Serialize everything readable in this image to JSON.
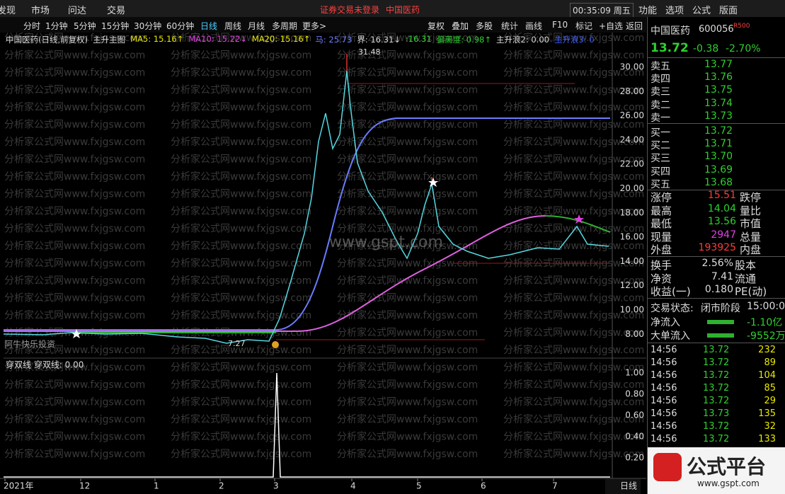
{
  "menu": [
    "发现",
    "市场",
    "问达",
    "交易"
  ],
  "status": "证券交易未登录",
  "stock_tab": "中国医药",
  "clock": "00:35:09 周五",
  "menu_right": [
    "功能",
    "选项",
    "公式",
    "版面"
  ],
  "periods": [
    "分时",
    "1分钟",
    "5分钟",
    "15分钟",
    "30分钟",
    "60分钟",
    "日线",
    "周线",
    "月线",
    "多周期",
    "更多>"
  ],
  "active_period": 6,
  "tools": [
    "复权",
    "叠加",
    "多股",
    "统计",
    "画线",
    "F10",
    "标记",
    "+自选",
    "返回"
  ],
  "info": [
    {
      "text": "中国医药(日线,前复权)",
      "color": "#d8d8d8"
    },
    {
      "text": "主升主图",
      "color": "#d8d8d8"
    },
    {
      "text": "MA5: 15.16↑",
      "color": "#e8e800"
    },
    {
      "text": "MA10: 15.22↓",
      "color": "#e040e0"
    },
    {
      "text": "MA20: 15.16↑",
      "color": "#e8e800"
    },
    {
      "text": "马: 25.73",
      "color": "#6a7cff"
    },
    {
      "text": "界: 16.31↓",
      "color": "#d8d8d8"
    },
    {
      "text": ":16.31",
      "color": "#2fd02f"
    },
    {
      "text": "偏离度: 0.98↑",
      "color": "#2fd02f"
    },
    {
      "text": "主升浪2: 0.00",
      "color": "#d8d8d8"
    },
    {
      "text": "主升浪3: 0",
      "color": "#3a5aff"
    }
  ],
  "price_axis": [
    "30.00",
    "28.00",
    "26.00",
    "24.00",
    "22.00",
    "20.00",
    "18.00",
    "16.00",
    "14.00",
    "12.00",
    "10.00",
    "8.00"
  ],
  "annotations": {
    "high": "31.48",
    "low": "7.27",
    "author": "阿牛快乐投资",
    "center": "www.gspt.com"
  },
  "watermark": "分析家公式网www.fxjgsw.com",
  "indicator": {
    "title": "穿双线 穿双线: 0.00",
    "axis": [
      "1.00",
      "0.80",
      "0.60",
      "0.40",
      "0.20"
    ]
  },
  "dates": [
    "2021年",
    "12",
    "1",
    "2",
    "3",
    "4",
    "5",
    "6",
    "7"
  ],
  "period_label": "日线",
  "quote": {
    "name": "中国医药",
    "code": "600056",
    "badge": "R500",
    "price": "13.72",
    "change": "-0.38",
    "pct": "-2.70%",
    "book": [
      [
        "卖五",
        "13.77"
      ],
      [
        "卖四",
        "13.76"
      ],
      [
        "卖三",
        "13.75"
      ],
      [
        "卖二",
        "13.74"
      ],
      [
        "卖一",
        "13.73"
      ],
      [
        "买一",
        "13.72"
      ],
      [
        "买二",
        "13.71"
      ],
      [
        "买三",
        "13.70"
      ],
      [
        "买四",
        "13.69"
      ],
      [
        "买五",
        "13.68"
      ]
    ],
    "stats": [
      [
        "涨停",
        "15.51",
        "跌停"
      ],
      [
        "最高",
        "14.04",
        "量比"
      ],
      [
        "最低",
        "13.56",
        "市值"
      ],
      [
        "现量",
        "2947",
        "总量"
      ],
      [
        "外盘",
        "193925",
        "内盘"
      ]
    ],
    "stat_colors": [
      "#ff3b3b",
      "#2fd02f",
      "#2fd02f",
      "#e040e0",
      "#ff3b3b"
    ],
    "stats2": [
      [
        "换手",
        "2.56%",
        "股本"
      ],
      [
        "净资",
        "7.41",
        "流通"
      ],
      [
        "收益(一)",
        "0.180",
        "PE(动)"
      ]
    ],
    "status": [
      "交易状态:",
      "闭市阶段",
      "15:00:0"
    ],
    "flows": [
      [
        "净流入",
        "-1.10亿"
      ],
      [
        "大单流入",
        "-9552万"
      ]
    ],
    "trades": [
      [
        "14:56",
        "13.72",
        "232"
      ],
      [
        "14:56",
        "13.72",
        "89"
      ],
      [
        "14:56",
        "13.72",
        "104"
      ],
      [
        "14:56",
        "13.72",
        "85"
      ],
      [
        "14:56",
        "13.72",
        "29"
      ],
      [
        "14:56",
        "13.73",
        "135"
      ],
      [
        "14:56",
        "13.72",
        "32"
      ],
      [
        "14:56",
        "13.72",
        "133"
      ]
    ]
  },
  "logo": {
    "text": "公式平台",
    "url": "www.gspt.com"
  }
}
